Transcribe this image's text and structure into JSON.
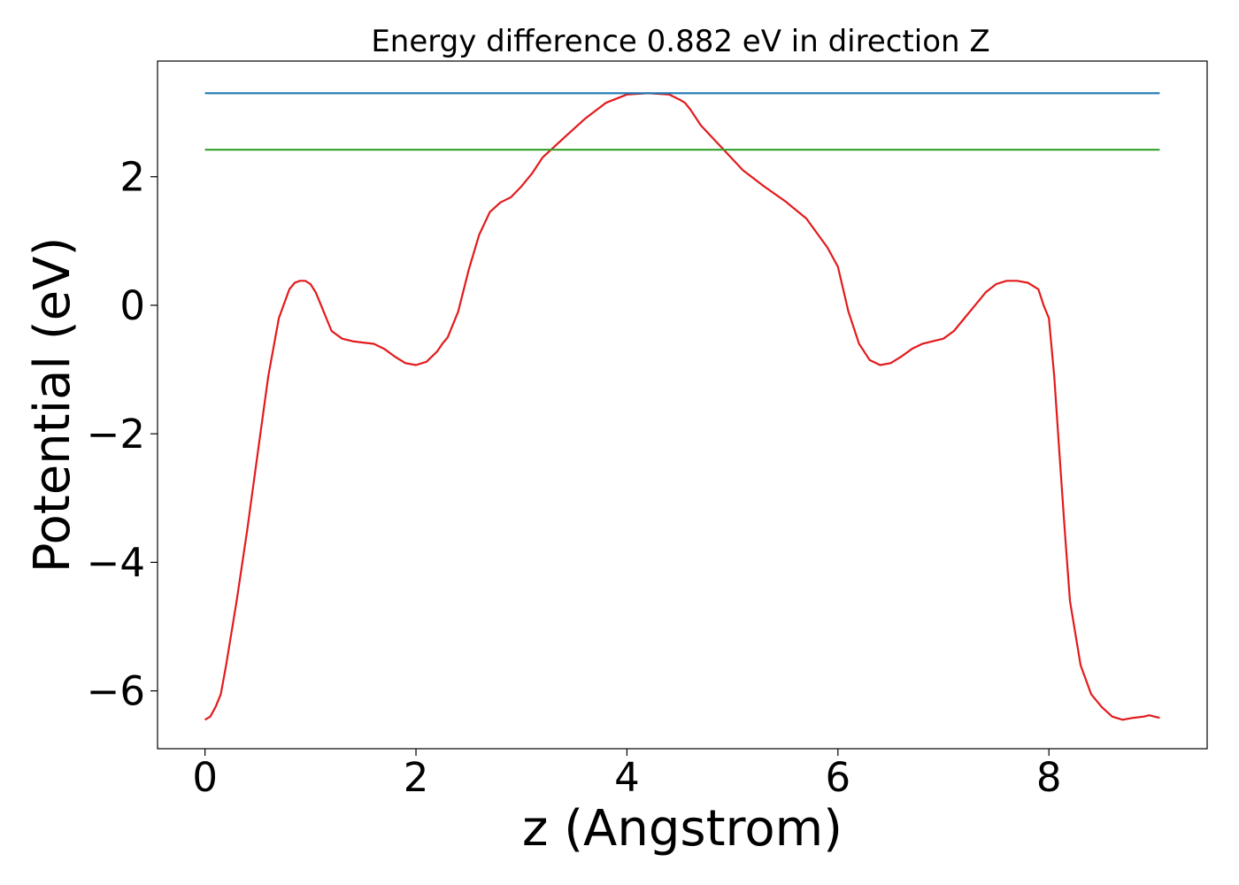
{
  "chart_data": {
    "type": "line",
    "title": "Energy difference 0.882 eV in direction Z",
    "xlabel": "z (Angstrom)",
    "ylabel": "Potential (eV)",
    "xlim": [
      -0.45,
      9.5
    ],
    "ylim": [
      -6.9,
      3.8
    ],
    "xticks": [
      0,
      2,
      4,
      6,
      8
    ],
    "xtick_labels": [
      "0",
      "2",
      "4",
      "6",
      "8"
    ],
    "yticks": [
      2,
      0,
      -2,
      -4,
      -6
    ],
    "ytick_labels": [
      "2",
      "0",
      "−2",
      "−4",
      "−6"
    ],
    "grid": false,
    "legend": "none",
    "series": [
      {
        "color": "#e31a1c",
        "x": [
          0,
          0.05,
          0.1,
          0.15,
          0.2,
          0.3,
          0.4,
          0.5,
          0.6,
          0.7,
          0.8,
          0.85,
          0.9,
          0.95,
          1.0,
          1.05,
          1.1,
          1.15,
          1.2,
          1.3,
          1.4,
          1.5,
          1.6,
          1.7,
          1.8,
          1.9,
          2.0,
          2.1,
          2.2,
          2.25,
          2.3,
          2.4,
          2.5,
          2.6,
          2.7,
          2.8,
          2.9,
          3.0,
          3.1,
          3.2,
          3.4,
          3.6,
          3.8,
          4.0,
          4.2,
          4.4,
          4.5,
          4.55,
          4.6,
          4.7,
          4.9,
          5.1,
          5.3,
          5.5,
          5.7,
          5.9,
          6.0,
          6.1,
          6.2,
          6.3,
          6.4,
          6.5,
          6.6,
          6.7,
          6.8,
          6.85,
          6.9,
          7.0,
          7.1,
          7.2,
          7.3,
          7.4,
          7.5,
          7.6,
          7.7,
          7.8,
          7.9,
          7.95,
          8.0,
          8.05,
          8.1,
          8.15,
          8.2,
          8.3,
          8.4,
          8.5,
          8.6,
          8.7,
          8.8,
          8.9,
          8.95,
          9.0,
          9.05
        ],
        "y": [
          -6.45,
          -6.4,
          -6.25,
          -6.05,
          -5.6,
          -4.6,
          -3.5,
          -2.3,
          -1.1,
          -0.2,
          0.25,
          0.35,
          0.38,
          0.38,
          0.33,
          0.2,
          0.0,
          -0.2,
          -0.4,
          -0.52,
          -0.56,
          -0.58,
          -0.6,
          -0.68,
          -0.8,
          -0.9,
          -0.93,
          -0.88,
          -0.72,
          -0.6,
          -0.5,
          -0.1,
          0.55,
          1.1,
          1.45,
          1.6,
          1.68,
          1.85,
          2.05,
          2.3,
          2.6,
          2.9,
          3.15,
          3.28,
          3.3,
          3.28,
          3.2,
          3.15,
          3.05,
          2.8,
          2.45,
          2.1,
          1.85,
          1.62,
          1.35,
          0.9,
          0.6,
          -0.1,
          -0.6,
          -0.85,
          -0.93,
          -0.9,
          -0.8,
          -0.68,
          -0.6,
          -0.58,
          -0.56,
          -0.52,
          -0.4,
          -0.2,
          0.0,
          0.2,
          0.33,
          0.38,
          0.38,
          0.35,
          0.25,
          0.0,
          -0.2,
          -1.1,
          -2.3,
          -3.5,
          -4.6,
          -5.6,
          -6.05,
          -6.25,
          -6.4,
          -6.45,
          -6.42,
          -6.4,
          -6.38,
          -6.4,
          -6.42
        ]
      },
      {
        "color": "#1f78b4",
        "x": [
          0,
          9.05
        ],
        "y": [
          3.3,
          3.3
        ]
      },
      {
        "color": "#33a02c",
        "x": [
          0,
          9.05
        ],
        "y": [
          2.42,
          2.42
        ]
      }
    ]
  }
}
